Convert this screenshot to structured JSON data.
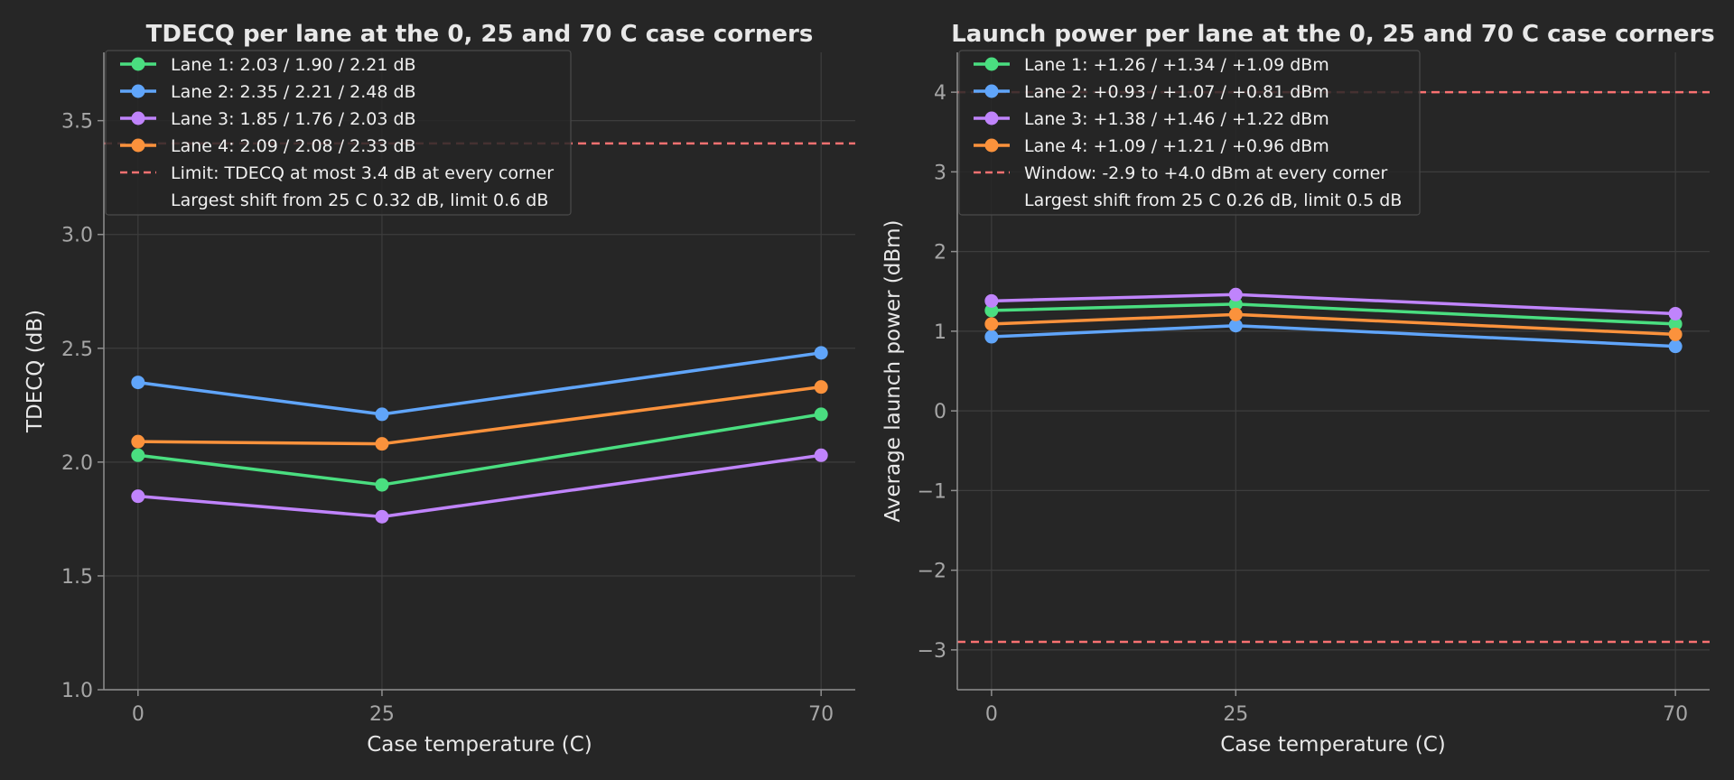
{
  "chart_data": [
    {
      "type": "line",
      "title": "TDECQ per lane at the 0, 25 and 70 C case corners",
      "xlabel": "Case temperature (C)",
      "ylabel": "TDECQ (dB)",
      "x": [
        0,
        25,
        70
      ],
      "xticks": [
        "0",
        "25",
        "70"
      ],
      "xlim": [
        -3.5,
        73.5
      ],
      "ylim": [
        1.0,
        3.8
      ],
      "yticks": [
        "1.0",
        "1.5",
        "2.0",
        "2.5",
        "3.0",
        "3.5"
      ],
      "ytick_values": [
        1.0,
        1.5,
        2.0,
        2.5,
        3.0,
        3.5
      ],
      "series": [
        {
          "name": "Lane 1: 2.03 / 1.90 / 2.21 dB",
          "values": [
            2.03,
            1.9,
            2.21
          ],
          "color": "#4ade80"
        },
        {
          "name": "Lane 2: 2.35 / 2.21 / 2.48 dB",
          "values": [
            2.35,
            2.21,
            2.48
          ],
          "color": "#60a5fa"
        },
        {
          "name": "Lane 3: 1.85 / 1.76 / 2.03 dB",
          "values": [
            1.85,
            1.76,
            2.03
          ],
          "color": "#c084fc"
        },
        {
          "name": "Lane 4: 2.09 / 2.08 / 2.33 dB",
          "values": [
            2.09,
            2.08,
            2.33
          ],
          "color": "#fb923c"
        }
      ],
      "limit_lines": [
        3.4
      ],
      "limit_label": "Limit: TDECQ at most 3.4 dB at every corner",
      "limit_color": "#f87171",
      "note": "Largest shift from 25 C 0.32 dB, limit 0.6 dB",
      "legend": "top-left",
      "grid": true
    },
    {
      "type": "line",
      "title": "Launch power per lane at the 0, 25 and 70 C case corners",
      "xlabel": "Case temperature (C)",
      "ylabel": "Average launch power (dBm)",
      "x": [
        0,
        25,
        70
      ],
      "xticks": [
        "0",
        "25",
        "70"
      ],
      "xlim": [
        -3.5,
        73.5
      ],
      "ylim": [
        -3.5,
        4.5
      ],
      "yticks": [
        "−3",
        "−2",
        "−1",
        "0",
        "1",
        "2",
        "3",
        "4"
      ],
      "ytick_values": [
        -3,
        -2,
        -1,
        0,
        1,
        2,
        3,
        4
      ],
      "series": [
        {
          "name": "Lane 1: +1.26 / +1.34 / +1.09 dBm",
          "values": [
            1.26,
            1.34,
            1.09
          ],
          "color": "#4ade80"
        },
        {
          "name": "Lane 2: +0.93 / +1.07 / +0.81 dBm",
          "values": [
            0.93,
            1.07,
            0.81
          ],
          "color": "#60a5fa"
        },
        {
          "name": "Lane 3: +1.38 / +1.46 / +1.22 dBm",
          "values": [
            1.38,
            1.46,
            1.22
          ],
          "color": "#c084fc"
        },
        {
          "name": "Lane 4: +1.09 / +1.21 / +0.96 dBm",
          "values": [
            1.09,
            1.21,
            0.96
          ],
          "color": "#fb923c"
        }
      ],
      "limit_lines": [
        4.0,
        -2.9
      ],
      "limit_label": "Window: -2.9 to +4.0 dBm at every corner",
      "limit_color": "#f87171",
      "note": "Largest shift from 25 C 0.26 dB, limit 0.5 dB",
      "legend": "top-left",
      "grid": true
    }
  ]
}
